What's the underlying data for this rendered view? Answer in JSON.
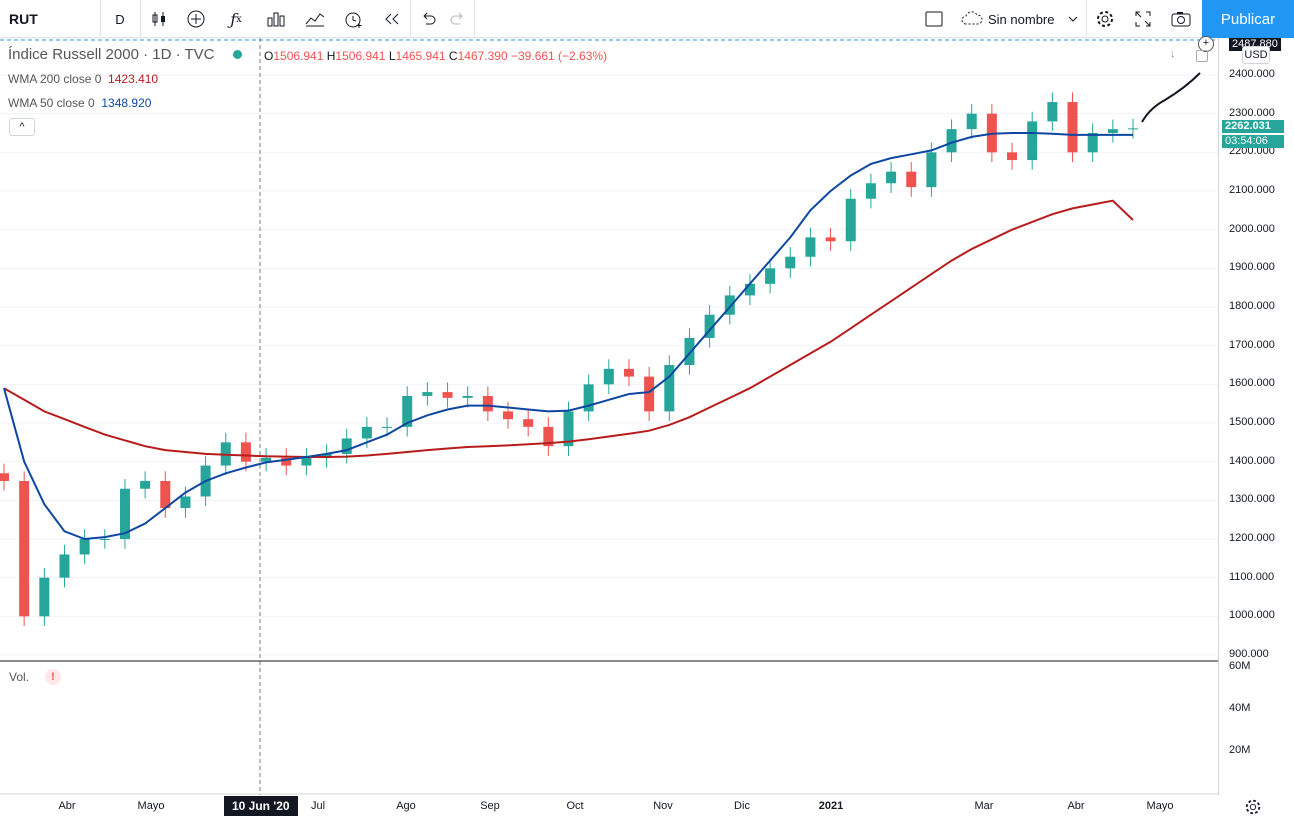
{
  "toolbar": {
    "symbol": "RUT",
    "interval": "D",
    "layout_name": "Sin nombre",
    "publish_label": "Publicar"
  },
  "legend": {
    "title": "Índice Russell 2000 · 1D · TVC",
    "o_label": "O",
    "o": "1506.941",
    "h_label": "H",
    "h": "1506.941",
    "l_label": "L",
    "l": "1465.941",
    "c_label": "C",
    "c": "1467.390",
    "change": "−39.661 (−2.63%)",
    "wma200_name": "WMA 200 close 0",
    "wma200_value": "1423.410",
    "wma50_name": "WMA 50 close 0",
    "wma50_value": "1348.920",
    "collapse_label": "^"
  },
  "volume": {
    "label": "Vol.",
    "warn": "!"
  },
  "price_scale": {
    "currency": "USD",
    "top_label": "2487.880",
    "current_price": "2262.031",
    "countdown": "03:54:06",
    "labels": [
      "2400.000",
      "2300.000",
      "2200.000",
      "2100.000",
      "2000.000",
      "1900.000",
      "1800.000",
      "1700.000",
      "1600.000",
      "1500.000",
      "1400.000",
      "1300.000",
      "1200.000",
      "1100.000",
      "1000.000",
      "900.000"
    ]
  },
  "volume_scale": {
    "labels": [
      "60M",
      "40M",
      "20M"
    ]
  },
  "time_axis": {
    "labels": [
      "Abr",
      "Mayo",
      "Jul",
      "Ago",
      "Sep",
      "Oct",
      "Nov",
      "Dic",
      "2021",
      "Mar",
      "Abr",
      "Mayo"
    ],
    "crosshair_label": "10 Jun '20"
  },
  "colors": {
    "up": "#26a69a",
    "down": "#ef5350",
    "wma200": "#b71c1c",
    "wma50": "#0d47a1",
    "accent": "#2196f3"
  },
  "chart_data": {
    "type": "candlestick",
    "symbol": "RUT",
    "ylim": [
      900,
      2460
    ],
    "x": [
      "2020-03-16",
      "2020-03-23",
      "2020-03-30",
      "2020-04-06",
      "2020-04-13",
      "2020-04-20",
      "2020-04-27",
      "2020-05-04",
      "2020-05-11",
      "2020-05-18",
      "2020-05-25",
      "2020-06-01",
      "2020-06-08",
      "2020-06-15",
      "2020-06-22",
      "2020-06-29",
      "2020-07-06",
      "2020-07-13",
      "2020-07-20",
      "2020-07-27",
      "2020-08-03",
      "2020-08-10",
      "2020-08-17",
      "2020-08-24",
      "2020-08-31",
      "2020-09-07",
      "2020-09-14",
      "2020-09-21",
      "2020-09-28",
      "2020-10-05",
      "2020-10-12",
      "2020-10-19",
      "2020-10-26",
      "2020-11-02",
      "2020-11-09",
      "2020-11-16",
      "2020-11-23",
      "2020-11-30",
      "2020-12-07",
      "2020-12-14",
      "2020-12-21",
      "2020-12-28",
      "2021-01-04",
      "2021-01-11",
      "2021-01-18",
      "2021-01-25",
      "2021-02-01",
      "2021-02-08",
      "2021-02-15",
      "2021-02-22",
      "2021-03-01",
      "2021-03-08",
      "2021-03-15",
      "2021-03-22",
      "2021-03-29",
      "2021-04-05",
      "2021-04-12"
    ],
    "series": [
      {
        "name": "Índice Russell 2000",
        "close": [
          1350,
          1000,
          1100,
          1160,
          1200,
          1200,
          1330,
          1350,
          1280,
          1310,
          1390,
          1450,
          1400,
          1410,
          1390,
          1410,
          1420,
          1460,
          1490,
          1490,
          1570,
          1580,
          1565,
          1570,
          1530,
          1510,
          1490,
          1440,
          1530,
          1600,
          1640,
          1620,
          1530,
          1650,
          1720,
          1780,
          1830,
          1860,
          1900,
          1930,
          1980,
          1970,
          2080,
          2120,
          2150,
          2110,
          2200,
          2260,
          2300,
          2200,
          2180,
          2280,
          2330,
          2200,
          2250,
          2260,
          2262
        ]
      },
      {
        "name": "WMA 200 close 0",
        "values": [
          1590,
          1560,
          1530,
          1510,
          1490,
          1470,
          1455,
          1440,
          1430,
          1425,
          1420,
          1418,
          1416,
          1414,
          1413,
          1412,
          1412,
          1413,
          1416,
          1420,
          1425,
          1430,
          1434,
          1438,
          1440,
          1442,
          1445,
          1448,
          1452,
          1458,
          1465,
          1472,
          1480,
          1495,
          1515,
          1540,
          1565,
          1590,
          1620,
          1650,
          1680,
          1710,
          1745,
          1780,
          1815,
          1850,
          1885,
          1920,
          1950,
          1975,
          2000,
          2020,
          2040,
          2055,
          2065,
          2075,
          2025
        ]
      },
      {
        "name": "WMA 50 close 0",
        "values": [
          1590,
          1400,
          1290,
          1220,
          1200,
          1205,
          1215,
          1240,
          1280,
          1320,
          1350,
          1370,
          1385,
          1398,
          1405,
          1412,
          1420,
          1430,
          1450,
          1470,
          1500,
          1520,
          1535,
          1545,
          1545,
          1540,
          1535,
          1530,
          1532,
          1545,
          1560,
          1575,
          1580,
          1620,
          1680,
          1740,
          1800,
          1860,
          1920,
          1980,
          2050,
          2100,
          2140,
          2170,
          2185,
          2195,
          2205,
          2225,
          2240,
          2248,
          2250,
          2250,
          2248,
          2245,
          2245,
          2245,
          2245
        ]
      }
    ]
  }
}
